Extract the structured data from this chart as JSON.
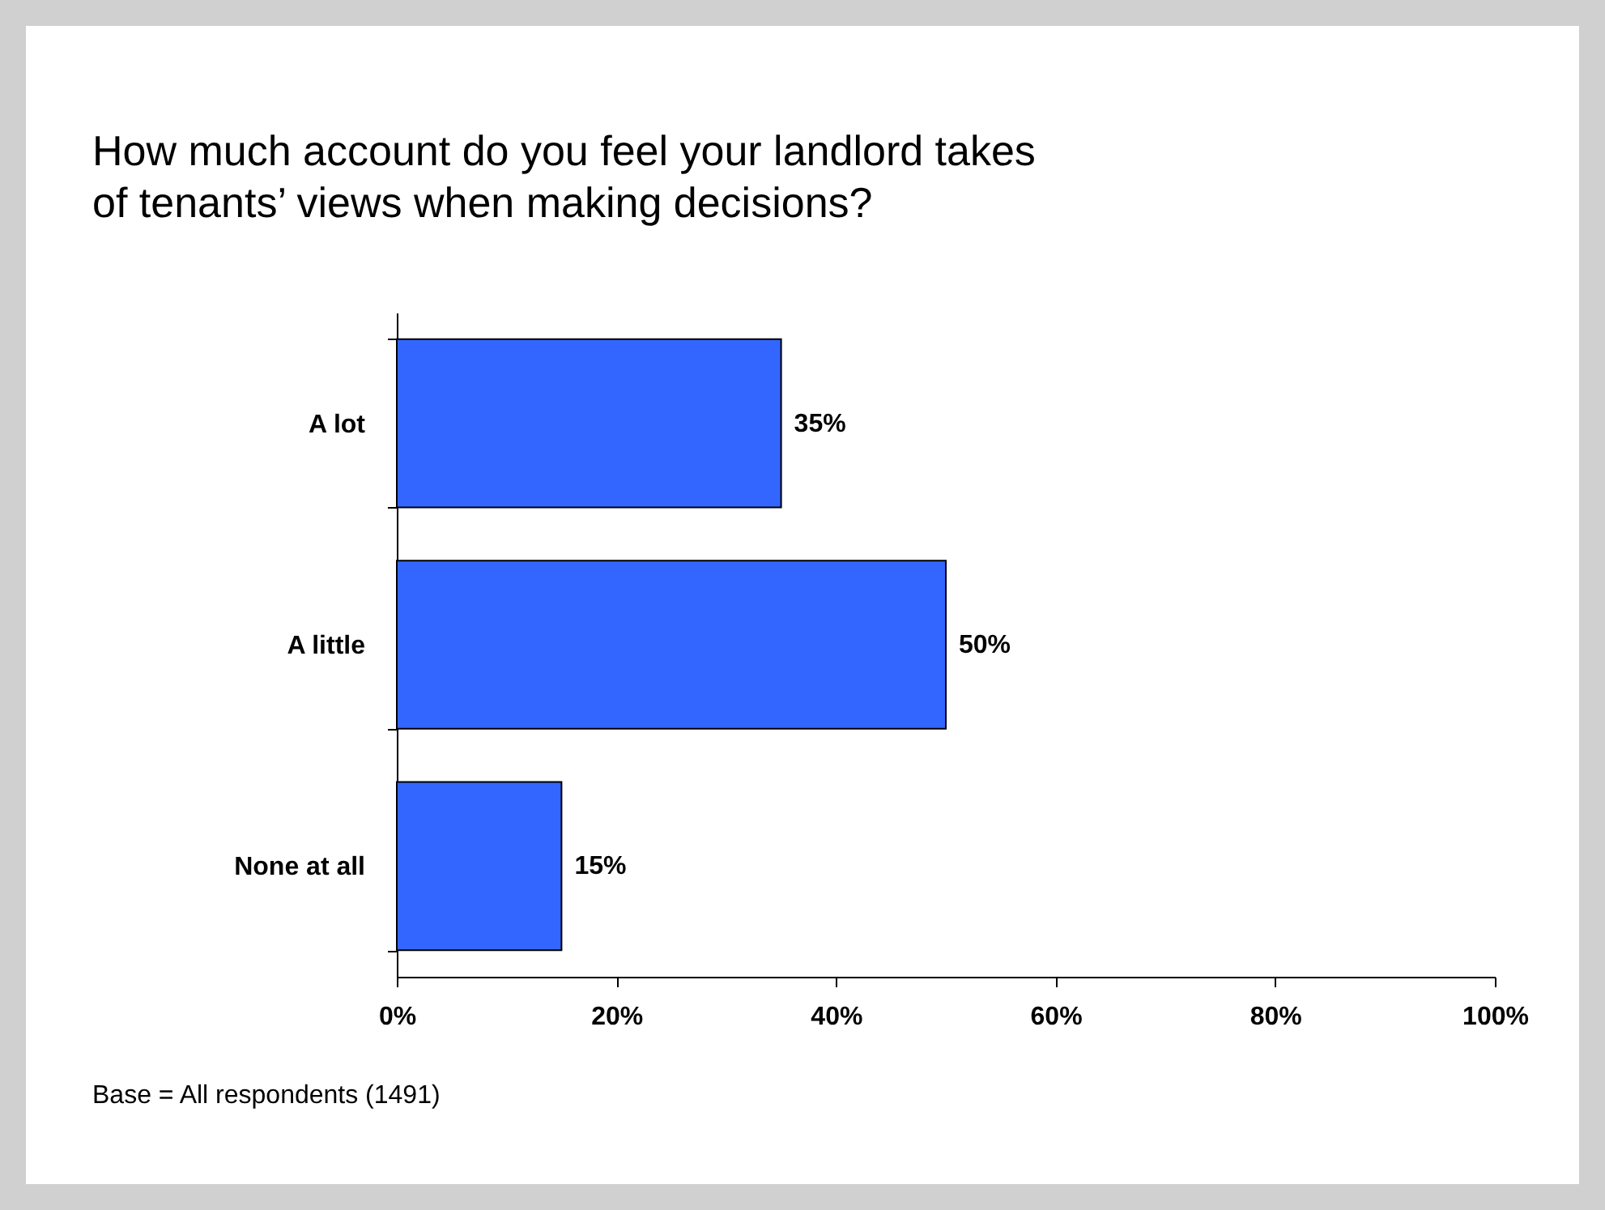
{
  "chart_data": {
    "type": "bar",
    "orientation": "horizontal",
    "title": [
      "How much account do you feel your landlord takes",
      "of tenants’ views when making decisions?"
    ],
    "categories": [
      "A lot",
      "A little",
      "None at all"
    ],
    "values": [
      35,
      50,
      15
    ],
    "value_labels": [
      "35%",
      "50%",
      "15%"
    ],
    "color": "#3366ff",
    "xlim": [
      0,
      100
    ],
    "xticks": [
      {
        "value": 0,
        "label": "0%"
      },
      {
        "value": 20,
        "label": "20%"
      },
      {
        "value": 40,
        "label": "40%"
      },
      {
        "value": 60,
        "label": "60%"
      },
      {
        "value": 80,
        "label": "80%"
      },
      {
        "value": 100,
        "label": "100%"
      }
    ],
    "grid": false,
    "annotations": [
      "Base = All respondents (1491)"
    ]
  }
}
